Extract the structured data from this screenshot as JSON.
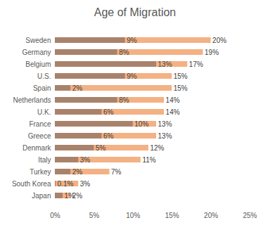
{
  "chart_data": {
    "type": "bar",
    "title": "Age of Migration",
    "orientation": "horizontal",
    "data_labels": true,
    "grid": false,
    "categories": [
      "Sweden",
      "Germany",
      "Belgium",
      "U.S.",
      "Spain",
      "Netherlands",
      "U.K.",
      "France",
      "Greece",
      "Denmark",
      "Italy",
      "Turkey",
      "South Korea",
      "Japan"
    ],
    "series": [
      {
        "color": "#f4b183",
        "values": [
          20,
          19,
          17,
          15,
          15,
          14,
          14,
          13,
          13,
          12,
          11,
          7,
          3,
          2
        ],
        "value_labels": [
          "20%",
          "19%",
          "17%",
          "15%",
          "15%",
          "14%",
          "14%",
          "13%",
          "13%",
          "12%",
          "11%",
          "7%",
          "3%",
          "2%"
        ]
      },
      {
        "color": "#a9826c",
        "values": [
          9,
          8,
          13,
          9,
          2,
          8,
          6,
          10,
          6,
          5,
          3,
          2,
          0.1,
          1
        ],
        "value_labels": [
          "9%",
          "8%",
          "13%",
          "9%",
          "2%",
          "8%",
          "6%",
          "10%",
          "6%",
          "5%",
          "3%",
          "2%",
          "0.1%",
          "1%"
        ]
      }
    ],
    "xlim": [
      0,
      25
    ],
    "xticks": [
      {
        "value": 0,
        "label": "0%"
      },
      {
        "value": 5,
        "label": "5%"
      },
      {
        "value": 10,
        "label": "10%"
      },
      {
        "value": 15,
        "label": "15%"
      },
      {
        "value": 20,
        "label": "20%"
      },
      {
        "value": 25,
        "label": "25%"
      }
    ]
  }
}
